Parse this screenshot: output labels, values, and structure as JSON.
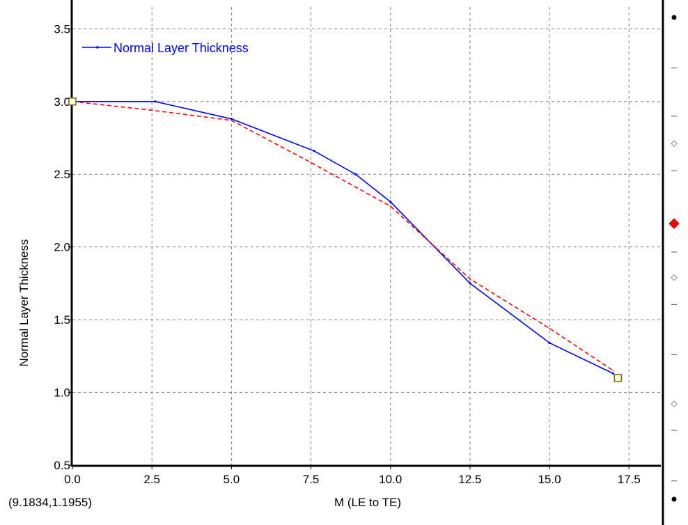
{
  "chart_data": {
    "type": "line",
    "title": "",
    "xlabel": "M (LE to TE)",
    "ylabel": "Normal Layer Thickness",
    "xlim": [
      0,
      18.5
    ],
    "ylim": [
      0.5,
      3.65
    ],
    "x_ticks": [
      "0.0",
      "2.5",
      "5.0",
      "7.5",
      "10.0",
      "12.5",
      "15.0",
      "17.5"
    ],
    "y_ticks": [
      "0.5",
      "1.0",
      "1.5",
      "2.0",
      "2.5",
      "3.0",
      "3.5"
    ],
    "grid": true,
    "legend": {
      "position": "top-left",
      "entries": [
        "Normal Layer Thickness"
      ]
    },
    "series": [
      {
        "name": "Normal Layer Thickness",
        "color": "#0000ff",
        "style": "solid",
        "x": [
          0.0,
          2.6,
          5.0,
          7.6,
          8.9,
          10.0,
          12.5,
          15.0,
          17.0
        ],
        "y": [
          3.0,
          3.0,
          2.88,
          2.66,
          2.5,
          2.31,
          1.75,
          1.34,
          1.13
        ]
      },
      {
        "color": "#ff0000",
        "style": "dashed",
        "x": [
          0.0,
          2.5,
          5.0,
          7.5,
          10.0,
          12.5,
          15.0,
          17.0
        ],
        "y": [
          3.0,
          2.94,
          2.87,
          2.58,
          2.28,
          1.78,
          1.44,
          1.15
        ]
      }
    ],
    "control_points": [
      {
        "x": 0.0,
        "y": 3.0
      },
      {
        "x": 17.15,
        "y": 1.1
      }
    ]
  },
  "cursor_readout": "(9.1834,1.1955)",
  "colors": {
    "primary_series": "#0000ff",
    "secondary_series": "#ff0000",
    "control_point": "#6b6b2a",
    "grid": "#808080",
    "marker_active": "#ff0000"
  },
  "side_panel": {
    "markers": [
      {
        "type": "dot-black",
        "fraction": 0.0
      },
      {
        "type": "tick",
        "fraction": 0.105
      },
      {
        "type": "tick",
        "fraction": 0.205
      },
      {
        "type": "diamond-hollow",
        "fraction": 0.262
      },
      {
        "type": "tick",
        "fraction": 0.318
      },
      {
        "type": "diamond-red",
        "fraction": 0.428
      },
      {
        "type": "tick",
        "fraction": 0.487
      },
      {
        "type": "diamond-hollow",
        "fraction": 0.54
      },
      {
        "type": "tick",
        "fraction": 0.596
      },
      {
        "type": "tick",
        "fraction": 0.7
      },
      {
        "type": "diamond-hollow",
        "fraction": 0.802
      },
      {
        "type": "tick",
        "fraction": 0.857
      },
      {
        "type": "tick",
        "fraction": 0.962
      },
      {
        "type": "dot-black",
        "fraction": 1.0
      }
    ]
  }
}
